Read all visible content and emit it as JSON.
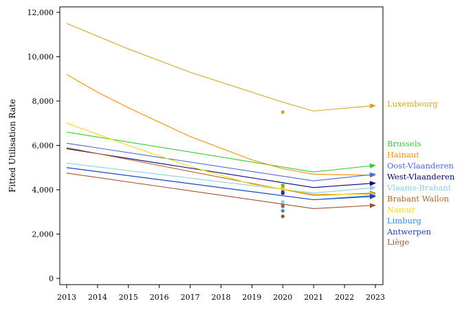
{
  "chart_data": {
    "type": "line",
    "title": "",
    "xlabel": "",
    "ylabel": "Fitted Utilisation Rate",
    "xlim": [
      2013,
      2023
    ],
    "ylim": [
      0,
      12000
    ],
    "x_ticks": [
      "2013",
      "2014",
      "2015",
      "2016",
      "2017",
      "2018",
      "2019",
      "2020",
      "2021",
      "2022",
      "2023"
    ],
    "y_ticks": [
      "0",
      "2,000",
      "4,000",
      "6,000",
      "8,000",
      "10,000",
      "12,000"
    ],
    "y_tick_values": [
      0,
      2000,
      4000,
      6000,
      8000,
      10000,
      12000
    ],
    "grid": false,
    "legend_position": "right",
    "series": [
      {
        "name": "Luxembourg",
        "color": "#DAA520",
        "points": [
          [
            2013,
            11500
          ],
          [
            2015,
            10350
          ],
          [
            2017,
            9300
          ],
          [
            2019,
            8400
          ],
          [
            2020,
            7950
          ],
          [
            2021,
            7550
          ],
          [
            2023,
            7800
          ]
        ],
        "observed_2020": 7500
      },
      {
        "name": "Brussels",
        "color": "#32CD32",
        "points": [
          [
            2013,
            6600
          ],
          [
            2021,
            4800
          ],
          [
            2023,
            5100
          ]
        ],
        "observed_2020": 4200
      },
      {
        "name": "Hainaut",
        "color": "#FF8C00",
        "points": [
          [
            2013,
            9200
          ],
          [
            2014,
            8400
          ],
          [
            2015,
            7700
          ],
          [
            2017,
            6400
          ],
          [
            2019,
            5350
          ],
          [
            2020,
            4950
          ],
          [
            2021,
            4700
          ],
          [
            2023,
            4650
          ]
        ],
        "observed_2020": 4100
      },
      {
        "name": "Oost-Vlaanderen",
        "color": "#4169E1",
        "points": [
          [
            2013,
            6100
          ],
          [
            2021,
            4400
          ],
          [
            2023,
            4700
          ]
        ],
        "observed_2020": 3300
      },
      {
        "name": "West-Vlaanderen",
        "color": "#000080",
        "points": [
          [
            2013,
            5850
          ],
          [
            2021,
            4100
          ],
          [
            2023,
            4300
          ]
        ],
        "observed_2020": 3850
      },
      {
        "name": "Vlaams-Brabant",
        "color": "#87CEEB",
        "points": [
          [
            2013,
            5200
          ],
          [
            2021,
            3850
          ],
          [
            2023,
            4100
          ]
        ],
        "observed_2020": 3450
      },
      {
        "name": "Brabant Wallon",
        "color": "#B8651B",
        "points": [
          [
            2013,
            5900
          ],
          [
            2021,
            3750
          ],
          [
            2023,
            3850
          ]
        ],
        "observed_2020": 3250
      },
      {
        "name": "Namur",
        "color": "#FFD700",
        "points": [
          [
            2013,
            7000
          ],
          [
            2015,
            6000
          ],
          [
            2017,
            5050
          ],
          [
            2019,
            4250
          ],
          [
            2021,
            3800
          ],
          [
            2023,
            3800
          ]
        ],
        "observed_2020": 4000
      },
      {
        "name": "Limburg",
        "color": "#1E90FF",
        "points": [
          [
            2013,
            5000
          ],
          [
            2021,
            3550
          ],
          [
            2023,
            3750
          ]
        ],
        "observed_2020": 3050
      },
      {
        "name": "Antwerpen",
        "color": "#1F3FBF",
        "points": [
          [
            2013,
            5000
          ],
          [
            2021,
            3550
          ],
          [
            2023,
            3700
          ]
        ],
        "observed_2020": 3900
      },
      {
        "name": "Liège",
        "color": "#A0522D",
        "points": [
          [
            2013,
            4750
          ],
          [
            2021,
            3150
          ],
          [
            2023,
            3300
          ]
        ],
        "observed_2020": 2800
      }
    ]
  }
}
